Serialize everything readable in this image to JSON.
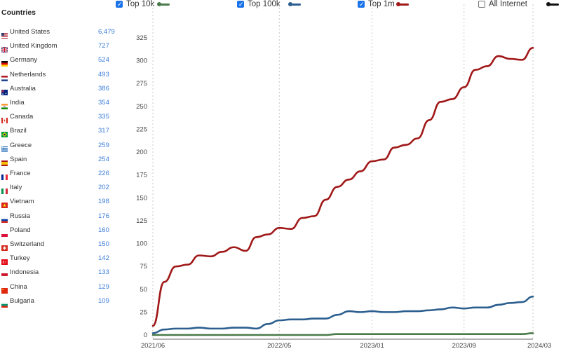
{
  "sidebar": {
    "title": "Countries",
    "countries": [
      {
        "name": "United States",
        "count": "6,479",
        "flag": "us-flag-icon"
      },
      {
        "name": "United Kingdom",
        "count": "727",
        "flag": "uk-flag-icon"
      },
      {
        "name": "Germany",
        "count": "524",
        "flag": "germany-flag-icon"
      },
      {
        "name": "Netherlands",
        "count": "493",
        "flag": "netherlands-flag-icon"
      },
      {
        "name": "Australia",
        "count": "386",
        "flag": "australia-flag-icon"
      },
      {
        "name": "India",
        "count": "354",
        "flag": "india-flag-icon"
      },
      {
        "name": "Canada",
        "count": "335",
        "flag": "canada-flag-icon"
      },
      {
        "name": "Brazil",
        "count": "317",
        "flag": "brazil-flag-icon"
      },
      {
        "name": "Greece",
        "count": "259",
        "flag": "greece-flag-icon"
      },
      {
        "name": "Spain",
        "count": "254",
        "flag": "spain-flag-icon"
      },
      {
        "name": "France",
        "count": "226",
        "flag": "france-flag-icon"
      },
      {
        "name": "Italy",
        "count": "202",
        "flag": "italy-flag-icon"
      },
      {
        "name": "Vietnam",
        "count": "198",
        "flag": "vietnam-flag-icon"
      },
      {
        "name": "Russia",
        "count": "176",
        "flag": "russia-flag-icon"
      },
      {
        "name": "Poland",
        "count": "160",
        "flag": "poland-flag-icon"
      },
      {
        "name": "Switzerland",
        "count": "150",
        "flag": "switzerland-flag-icon"
      },
      {
        "name": "Turkey",
        "count": "142",
        "flag": "turkey-flag-icon"
      },
      {
        "name": "Indonesia",
        "count": "133",
        "flag": "indonesia-flag-icon"
      },
      {
        "name": "China",
        "count": "129",
        "flag": "china-flag-icon"
      },
      {
        "name": "Bulgaria",
        "count": "109",
        "flag": "bulgaria-flag-icon"
      }
    ]
  },
  "legend": [
    {
      "label": "Top 10k",
      "checked": true,
      "color": "#4a7a4a"
    },
    {
      "label": "Top 100k",
      "checked": true,
      "color": "#2c5f8f"
    },
    {
      "label": "Top 1m",
      "checked": true,
      "color": "#a01818"
    },
    {
      "label": "All Internet",
      "checked": false,
      "color": "#111111"
    }
  ],
  "chart_data": {
    "type": "line",
    "title": "",
    "xlabel": "",
    "ylabel": "",
    "ylim": [
      0,
      325
    ],
    "yticks": [
      "0",
      "25",
      "50",
      "75",
      "100",
      "125",
      "150",
      "175",
      "200",
      "225",
      "250",
      "275",
      "300",
      "325"
    ],
    "xticks": [
      "2021/06",
      "2022/05",
      "2023/01",
      "2023/09",
      "2024/03"
    ],
    "grid": true,
    "x": [
      "2021-06-01",
      "2021-07-01",
      "2021-08-01",
      "2021-09-01",
      "2021-10-01",
      "2021-11-01",
      "2021-12-01",
      "2022-01-01",
      "2022-02-01",
      "2022-03-01",
      "2022-04-01",
      "2022-05-01",
      "2022-06-01",
      "2022-07-01",
      "2022-08-01",
      "2022-09-01",
      "2022-10-01",
      "2022-11-01",
      "2022-12-01",
      "2023-01-01",
      "2023-02-01",
      "2023-03-01",
      "2023-04-01",
      "2023-05-01",
      "2023-06-01",
      "2023-07-01",
      "2023-08-01",
      "2023-09-01",
      "2023-10-01",
      "2023-11-01",
      "2023-12-01",
      "2024-01-01",
      "2024-02-01",
      "2024-03-01"
    ],
    "series": [
      {
        "name": "Top 10k",
        "color": "#4a7a4a",
        "values": [
          0,
          0,
          0,
          0,
          0,
          0,
          0,
          0,
          0,
          0,
          0,
          0,
          0,
          0,
          0,
          0,
          1,
          1,
          1,
          1,
          1,
          1,
          1,
          1,
          1,
          1,
          1,
          1,
          1,
          1,
          1,
          1,
          1,
          2
        ]
      },
      {
        "name": "Top 100k",
        "color": "#2c5f8f",
        "values": [
          2,
          6,
          7,
          7,
          8,
          7,
          7,
          8,
          8,
          7,
          12,
          16,
          17,
          17,
          18,
          18,
          22,
          26,
          25,
          26,
          25,
          25,
          26,
          26,
          27,
          28,
          30,
          29,
          30,
          30,
          33,
          35,
          36,
          42
        ]
      },
      {
        "name": "Top 1m",
        "color": "#a01818",
        "values": [
          10,
          58,
          75,
          77,
          87,
          86,
          91,
          96,
          92,
          107,
          110,
          117,
          116,
          128,
          130,
          148,
          162,
          170,
          179,
          190,
          192,
          205,
          208,
          215,
          235,
          255,
          258,
          271,
          290,
          294,
          305,
          302,
          301,
          314
        ]
      }
    ]
  }
}
